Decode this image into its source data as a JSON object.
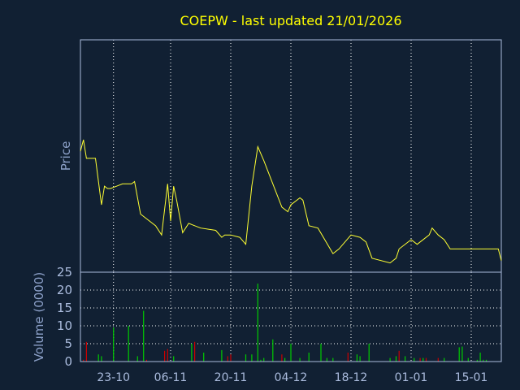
{
  "title": "COEPW - last updated 21/01/2026",
  "colors": {
    "background": "#112033",
    "axes": "#aabbdd",
    "grid": "#ffffff",
    "title": "#ffff00",
    "price_line": "#ffff33",
    "volume_up": "#00cc00",
    "volume_down": "#cc0000",
    "label": "#8ca0c8",
    "tick_text": "#aabbdd"
  },
  "chart_data": [
    {
      "type": "line",
      "title": "COEPW - last updated 21/01/2026",
      "ylabel": "Price",
      "xlabel": "",
      "grid": true,
      "y_ticks_shown": false,
      "ylim": [
        0,
        100
      ],
      "x_day_range": [
        0,
        100
      ],
      "x_ticks": [
        {
          "label": "23-10",
          "day": 11
        },
        {
          "label": "06-11",
          "day": 30
        },
        {
          "label": "20-11",
          "day": 50
        },
        {
          "label": "04-12",
          "day": 70
        },
        {
          "label": "18-12",
          "day": 90
        },
        {
          "label": "01-01",
          "day": 110
        },
        {
          "label": "15-01",
          "day": 130
        }
      ],
      "series": [
        {
          "x": [
            0,
            1,
            2,
            5,
            7,
            8,
            9,
            10,
            12,
            14,
            17,
            18,
            20,
            21,
            23,
            25,
            27,
            29,
            30,
            31,
            32,
            34,
            36,
            38,
            40,
            45,
            47,
            48,
            50,
            53,
            55,
            57,
            59,
            61,
            64,
            67,
            69,
            70,
            73,
            74,
            76,
            79,
            84,
            86,
            90,
            93,
            95,
            97,
            103,
            105,
            106,
            110,
            112,
            116,
            117,
            119,
            121,
            123,
            125,
            126,
            131,
            139,
            140
          ],
          "y": [
            52,
            57,
            49,
            49,
            29,
            37,
            36,
            36,
            37,
            38,
            38,
            39,
            25,
            24,
            22,
            20,
            16,
            38,
            22,
            37,
            31,
            17,
            21,
            20,
            19,
            18,
            15,
            16,
            16,
            15,
            12,
            37,
            54,
            48,
            38,
            28,
            26,
            29,
            32,
            31,
            20,
            19,
            8,
            10,
            16,
            15,
            13,
            6,
            4,
            6,
            10,
            14,
            12,
            16,
            19,
            16,
            14,
            10,
            10,
            10,
            10,
            10,
            5
          ]
        }
      ]
    },
    {
      "type": "bar",
      "ylabel": "Volume (0000)",
      "xlabel": "",
      "grid": true,
      "ylim": [
        0,
        25
      ],
      "y_ticks": [
        0,
        5,
        10,
        15,
        20,
        25
      ],
      "x_ticks": [
        {
          "label": "23-10",
          "day": 11
        },
        {
          "label": "06-11",
          "day": 30
        },
        {
          "label": "20-11",
          "day": 50
        },
        {
          "label": "04-12",
          "day": 70
        },
        {
          "label": "18-12",
          "day": 90
        },
        {
          "label": "01-01",
          "day": 110
        },
        {
          "label": "15-01",
          "day": 130
        }
      ],
      "series": [
        {
          "name": "",
          "x": [
            1,
            2,
            6,
            7,
            11,
            16,
            19,
            21,
            22,
            28,
            29,
            31,
            37,
            38,
            41,
            47,
            49,
            50,
            55,
            57,
            59,
            60,
            61,
            64,
            67,
            68,
            70,
            73,
            76,
            80,
            82,
            84,
            89,
            92,
            93,
            96,
            103,
            105,
            106,
            108,
            111,
            113,
            114,
            115,
            119,
            121,
            126,
            127,
            129,
            132,
            133,
            134,
            135
          ],
          "values": [
            0.5,
            5.5,
            2,
            1.5,
            9.5,
            10,
            1.5,
            14.2,
            0.5,
            3,
            3.5,
            1.5,
            5,
            5.5,
            2.5,
            3.2,
            1.5,
            2,
            2,
            2,
            21.8,
            0.5,
            1,
            6.2,
            2,
            1,
            5,
            1,
            2.5,
            5,
            1,
            1,
            2.5,
            2,
            1.5,
            5,
            1,
            1.5,
            3,
            1.5,
            1,
            1,
            1,
            1,
            1,
            1,
            4,
            4.2,
            1,
            0.5,
            2.5,
            0.5,
            0.5
          ],
          "direction": [
            "down",
            "down",
            "up",
            "up",
            "up",
            "up",
            "up",
            "up",
            "down",
            "down",
            "down",
            "up",
            "up",
            "down",
            "up",
            "up",
            "down",
            "down",
            "up",
            "up",
            "up",
            "up",
            "up",
            "up",
            "down",
            "up",
            "up",
            "up",
            "up",
            "up",
            "up",
            "up",
            "down",
            "up",
            "up",
            "up",
            "up",
            "up",
            "down",
            "up",
            "up",
            "down",
            "up",
            "down",
            "down",
            "up",
            "up",
            "up",
            "up",
            "up",
            "up",
            "up",
            "up"
          ]
        }
      ]
    }
  ]
}
